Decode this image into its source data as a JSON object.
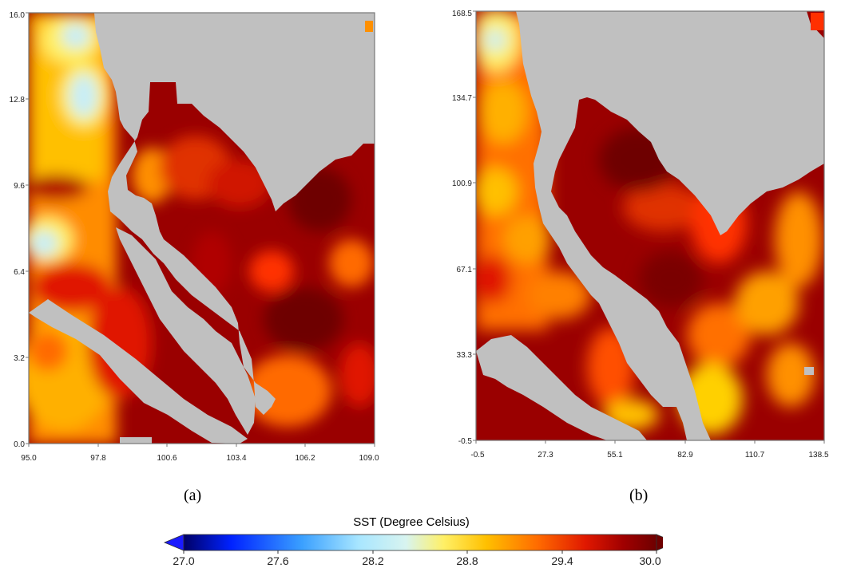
{
  "colors": {
    "land": "#c0c0c0",
    "frame": "#777777",
    "scale": [
      "#000066",
      "#0033ff",
      "#66ccff",
      "#c8eef8",
      "#fff066",
      "#ffc000",
      "#ff6a00",
      "#e01800",
      "#9a0000",
      "#6e0000"
    ]
  },
  "panels": [
    {
      "label": "(a)",
      "x_ticks": [
        "95.0",
        "97.8",
        "100.6",
        "103.4",
        "106.2",
        "109.0"
      ],
      "y_ticks": [
        "0.0",
        "3.2",
        "6.4",
        "9.6",
        "12.8",
        "16.0"
      ]
    },
    {
      "label": "(b)",
      "x_ticks": [
        "-0.5",
        "27.3",
        "55.1",
        "82.9",
        "110.7",
        "138.5"
      ],
      "y_ticks": [
        "-0.5",
        "33.3",
        "67.1",
        "100.9",
        "134.7",
        "168.5"
      ]
    }
  ],
  "colorbar": {
    "title": "SST (Degree Celsius)",
    "ticks": [
      "27.0",
      "27.6",
      "28.2",
      "28.8",
      "29.4",
      "30.0"
    ]
  }
}
